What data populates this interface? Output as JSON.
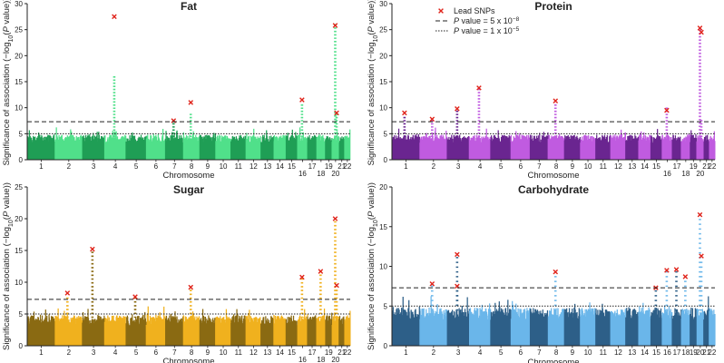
{
  "figure_type": "manhattan-plot-grid",
  "legend": {
    "lead_snps": "Lead SNPs",
    "genome_wide_prefix": "P",
    "genome_wide_rest": " value = 5 x 10",
    "genome_wide_exp": "−8",
    "suggestive_prefix": "P",
    "suggestive_rest": " value = 1 x 10",
    "suggestive_exp": "−5"
  },
  "colors": {
    "lead_snp_marker": "#e0241b",
    "threshold_line": "#222222"
  },
  "chart_data": [
    {
      "type": "scatter",
      "id": "fat",
      "title": "Fat",
      "xlabel": "Chromosome",
      "ylabel": "Significance of association (−log10(P value))",
      "ylabel_parts": [
        "Significance of association (−log",
        "10",
        "(",
        "P",
        " value))"
      ],
      "yticks": [
        0,
        5,
        10,
        15,
        20,
        25,
        30
      ],
      "ylim": [
        0,
        30
      ],
      "colors": [
        "#1f9e55",
        "#50e08a"
      ],
      "chromosomes": [
        "1",
        "2",
        "3",
        "4",
        "5",
        "6",
        "7",
        "8",
        "9",
        "10",
        "11",
        "12",
        "13",
        "14",
        "15",
        "16",
        "17",
        "18",
        "19",
        "20",
        "21",
        "22"
      ],
      "chrom_label_row": [
        0,
        0,
        0,
        0,
        0,
        0,
        0,
        0,
        0,
        0,
        0,
        0,
        0,
        0,
        0,
        1,
        0,
        1,
        0,
        1,
        0,
        0
      ],
      "thresholds": {
        "genome_wide": 7.3,
        "suggestive": 5
      },
      "peaks": [
        {
          "chrom": 4,
          "peak": 16,
          "lead": 27.5
        },
        {
          "chrom": 7,
          "peak": 7.8,
          "lead": 7.5
        },
        {
          "chrom": 8,
          "peak": 9,
          "lead": 11
        },
        {
          "chrom": 16,
          "peak": 11,
          "lead": 11.5
        },
        {
          "chrom": 20,
          "peak": 26,
          "lead": 25.8
        },
        {
          "chrom": 20,
          "peak": 9,
          "lead": 9
        }
      ]
    },
    {
      "type": "scatter",
      "id": "protein",
      "title": "Protein",
      "xlabel": "Chromosome",
      "ylabel": "Significance of association (−log10(P value))",
      "ylabel_parts": [
        "Significance of association (−log",
        "10",
        "(",
        "P",
        " value))"
      ],
      "yticks": [
        0,
        5,
        10,
        15,
        20,
        25,
        30
      ],
      "ylim": [
        0,
        30
      ],
      "colors": [
        "#6a2590",
        "#c05be0"
      ],
      "chromosomes": [
        "1",
        "2",
        "3",
        "4",
        "5",
        "6",
        "7",
        "8",
        "9",
        "10",
        "11",
        "12",
        "13",
        "14",
        "15",
        "16",
        "17",
        "18",
        "19",
        "20",
        "21",
        "22"
      ],
      "chrom_label_row": [
        0,
        0,
        0,
        0,
        0,
        0,
        0,
        0,
        0,
        0,
        0,
        0,
        0,
        0,
        0,
        1,
        0,
        1,
        0,
        1,
        0,
        0
      ],
      "thresholds": {
        "genome_wide": 7.3,
        "suggestive": 5
      },
      "peaks": [
        {
          "chrom": 1,
          "peak": 8.5,
          "lead": 9
        },
        {
          "chrom": 2,
          "peak": 7.5,
          "lead": 7.8
        },
        {
          "chrom": 3,
          "peak": 9.5,
          "lead": 9.8
        },
        {
          "chrom": 4,
          "peak": 14,
          "lead": 13.8
        },
        {
          "chrom": 8,
          "peak": 11,
          "lead": 11.3
        },
        {
          "chrom": 16,
          "peak": 10,
          "lead": 9.5
        },
        {
          "chrom": 20,
          "peak": 25.5,
          "lead": 25.3
        },
        {
          "chrom": 20,
          "peak": 8,
          "lead": 24.5
        }
      ]
    },
    {
      "type": "scatter",
      "id": "sugar",
      "title": "Sugar",
      "xlabel": "Chromosome",
      "ylabel": "Significance of association (−log10(P value))",
      "ylabel_parts": [
        "Significance of association (−log",
        "10",
        "(",
        "P",
        " value))"
      ],
      "yticks": [
        0,
        5,
        10,
        15,
        20,
        25
      ],
      "ylim": [
        0,
        25
      ],
      "colors": [
        "#8a6a12",
        "#f0b11e"
      ],
      "chromosomes": [
        "1",
        "2",
        "3",
        "4",
        "5",
        "6",
        "7",
        "8",
        "9",
        "10",
        "11",
        "12",
        "13",
        "14",
        "15",
        "16",
        "17",
        "18",
        "19",
        "20",
        "21",
        "22"
      ],
      "chrom_label_row": [
        0,
        0,
        0,
        0,
        0,
        0,
        0,
        0,
        0,
        0,
        0,
        0,
        0,
        0,
        0,
        1,
        0,
        1,
        0,
        1,
        0,
        0
      ],
      "thresholds": {
        "genome_wide": 7.3,
        "suggestive": 5
      },
      "peaks": [
        {
          "chrom": 2,
          "peak": 8,
          "lead": 8.3
        },
        {
          "chrom": 3,
          "peak": 15,
          "lead": 15.2
        },
        {
          "chrom": 5,
          "peak": 7.5,
          "lead": 7.7
        },
        {
          "chrom": 8,
          "peak": 9,
          "lead": 9.2
        },
        {
          "chrom": 16,
          "peak": 11,
          "lead": 10.8
        },
        {
          "chrom": 18,
          "peak": 12,
          "lead": 11.7
        },
        {
          "chrom": 20,
          "peak": 20,
          "lead": 20
        },
        {
          "chrom": 20,
          "peak": 9,
          "lead": 9.5
        }
      ]
    },
    {
      "type": "scatter",
      "id": "carbohydrate",
      "title": "Carbohydrate",
      "xlabel": "Chromosome",
      "ylabel": "Significance of association (−log10(P value))",
      "ylabel_parts": [
        "Significance of association (−log",
        "10",
        "(",
        "P",
        " value))"
      ],
      "yticks": [
        0,
        5,
        10,
        15,
        20
      ],
      "ylim": [
        0,
        20
      ],
      "colors": [
        "#2d5f88",
        "#6ab6ea"
      ],
      "chromosomes": [
        "1",
        "2",
        "3",
        "4",
        "5",
        "6",
        "7",
        "8",
        "9",
        "10",
        "11",
        "12",
        "13",
        "14",
        "15",
        "16",
        "17",
        "18",
        "19",
        "20",
        "21",
        "22"
      ],
      "chrom_label_row": [
        0,
        0,
        0,
        0,
        0,
        0,
        0,
        0,
        0,
        0,
        0,
        0,
        0,
        0,
        0,
        1,
        0,
        1,
        0,
        1,
        0,
        0
      ],
      "thresholds": {
        "genome_wide": 7.3,
        "suggestive": 5
      },
      "peaks": [
        {
          "chrom": 2,
          "peak": 7.5,
          "lead": 7.8
        },
        {
          "chrom": 3,
          "peak": 11.5,
          "lead": 11.5
        },
        {
          "chrom": 3,
          "peak": 7.5,
          "lead": 7.5
        },
        {
          "chrom": 8,
          "peak": 9,
          "lead": 9.3
        },
        {
          "chrom": 15,
          "peak": 7.2,
          "lead": 7.3
        },
        {
          "chrom": 16,
          "peak": 9.5,
          "lead": 9.5
        },
        {
          "chrom": 17,
          "peak": 9.5,
          "lead": 9.6
        },
        {
          "chrom": 18,
          "peak": 8.5,
          "lead": 8.7
        },
        {
          "chrom": 20,
          "peak": 16.5,
          "lead": 16.5
        },
        {
          "chrom": 20,
          "peak": 11,
          "lead": 11.3
        }
      ]
    }
  ]
}
